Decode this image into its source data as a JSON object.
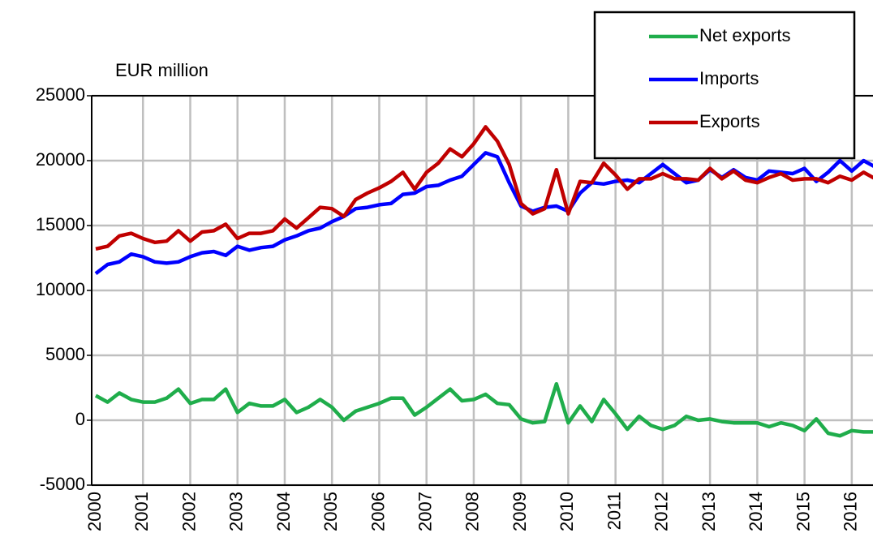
{
  "chart_data": {
    "type": "line",
    "y_label": "EUR million",
    "categories": [
      "2000",
      null,
      null,
      null,
      "2001",
      null,
      null,
      null,
      "2002",
      null,
      null,
      null,
      "2003",
      null,
      null,
      null,
      "2004",
      null,
      null,
      null,
      "2005",
      null,
      null,
      null,
      "2006",
      null,
      null,
      null,
      "2007",
      null,
      null,
      null,
      "2008",
      null,
      null,
      null,
      "2009",
      null,
      null,
      null,
      "2010",
      null,
      null,
      null,
      "2011",
      null,
      null,
      null,
      "2012",
      null,
      null,
      null,
      "2013",
      null,
      null,
      null,
      "2014",
      null,
      null,
      null,
      "2015",
      null,
      null,
      null,
      "2016",
      null,
      null
    ],
    "series": [
      {
        "name": "Net exports",
        "color": "#1fad4b",
        "values": [
          1900,
          1400,
          2100,
          1600,
          1400,
          1400,
          1700,
          2400,
          1300,
          1600,
          1600,
          2400,
          600,
          1300,
          1100,
          1100,
          1600,
          600,
          1000,
          1600,
          1000,
          0,
          700,
          1000,
          1300,
          1700,
          1700,
          400,
          1000,
          1700,
          2400,
          1500,
          1600,
          2000,
          1300,
          1200,
          100,
          -200,
          -100,
          2800,
          -200,
          1100,
          -100,
          1600,
          500,
          -700,
          300,
          -400,
          -700,
          -400,
          300,
          0,
          100,
          -100,
          -200,
          -200,
          -200,
          -500,
          -200,
          -400,
          -800,
          100,
          -1000,
          -1200,
          -800,
          -900,
          -900
        ]
      },
      {
        "name": "Imports",
        "color": "#0000ff",
        "values": [
          11300,
          12000,
          12200,
          12800,
          12600,
          12200,
          12100,
          12200,
          12600,
          12900,
          13000,
          12700,
          13400,
          13100,
          13300,
          13400,
          13900,
          14200,
          14600,
          14800,
          15300,
          15700,
          16300,
          16400,
          16600,
          16700,
          17400,
          17500,
          18000,
          18100,
          18500,
          18800,
          19700,
          20600,
          20300,
          18300,
          16500,
          16100,
          16400,
          16500,
          16100,
          17500,
          18300,
          18200,
          18400,
          18500,
          18300,
          19000,
          19700,
          19000,
          18300,
          18500,
          19300,
          18700,
          19300,
          18700,
          18500,
          19200,
          19100,
          19000,
          19400,
          18400,
          19100,
          20000,
          19200,
          20000,
          19500
        ]
      },
      {
        "name": "Exports",
        "color": "#c00000",
        "values": [
          13200,
          13400,
          14200,
          14400,
          14000,
          13700,
          13800,
          14600,
          13800,
          14500,
          14600,
          15100,
          14000,
          14400,
          14400,
          14600,
          15500,
          14800,
          15600,
          16400,
          16300,
          15700,
          17000,
          17500,
          17900,
          18400,
          19100,
          17800,
          19100,
          19800,
          20900,
          20300,
          21300,
          22600,
          21500,
          19700,
          16700,
          15900,
          16300,
          19300,
          15900,
          18400,
          18300,
          19800,
          18900,
          17800,
          18600,
          18600,
          19000,
          18600,
          18600,
          18500,
          19400,
          18600,
          19200,
          18500,
          18300,
          18700,
          19000,
          18500,
          18600,
          18600,
          18300,
          18800,
          18500,
          19100,
          18600
        ]
      }
    ],
    "ylim": [
      -5000,
      25000
    ],
    "yticks": [
      -5000,
      0,
      5000,
      10000,
      15000,
      20000,
      25000
    ],
    "grid": true,
    "legend": "upper right"
  }
}
